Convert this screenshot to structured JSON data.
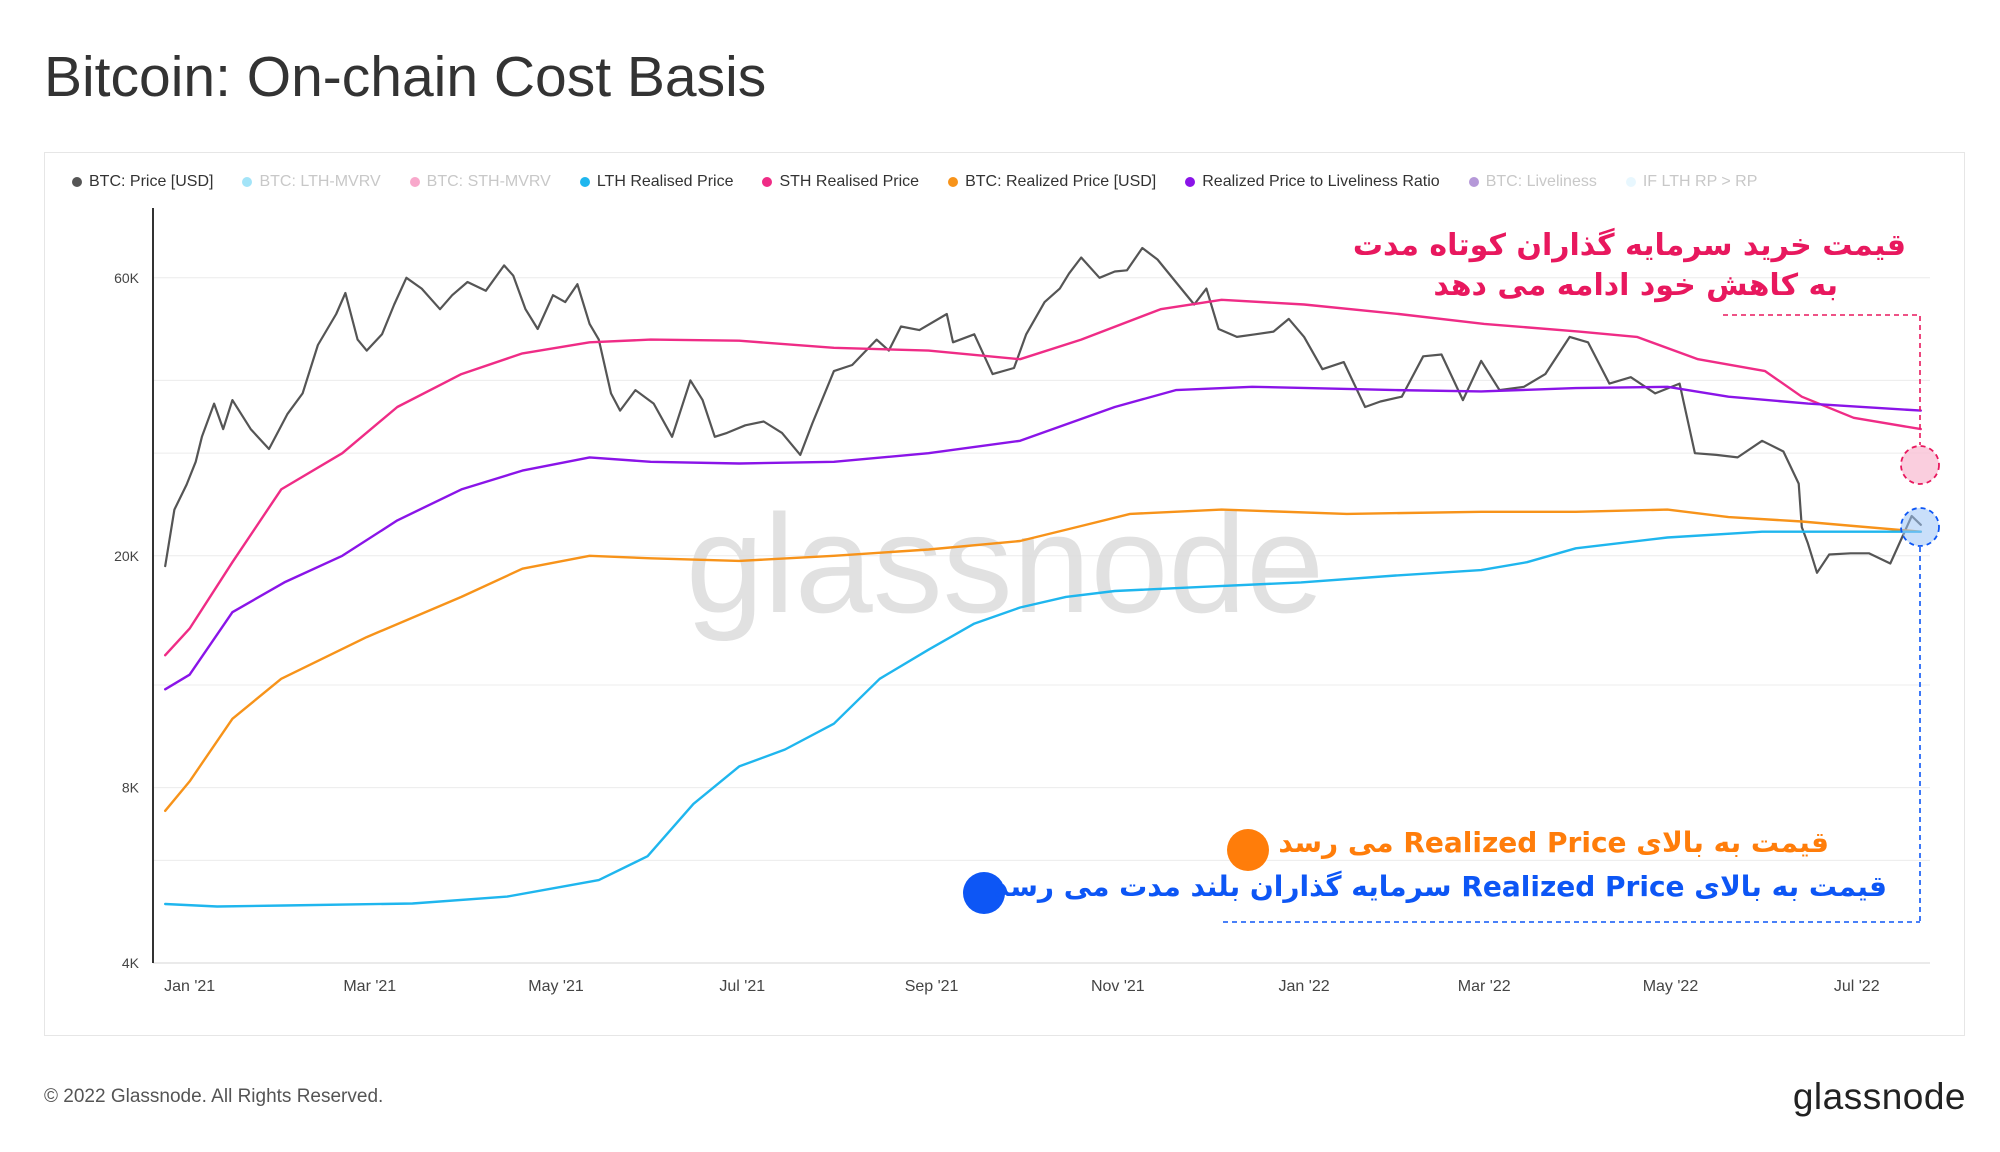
{
  "title": "Bitcoin: On-chain Cost Basis",
  "footer": {
    "copyright": "© 2022 Glassnode. All Rights Reserved.",
    "logo": "glassnode"
  },
  "watermark": "glassnode",
  "legend": [
    {
      "label": "BTC: Price [USD]",
      "color": "#555555",
      "active": true
    },
    {
      "label": "BTC: LTH-MVRV",
      "color": "#34c3f0",
      "active": false
    },
    {
      "label": "BTC: STH-MVRV",
      "color": "#ef3f8c",
      "active": false
    },
    {
      "label": "LTH Realised Price",
      "color": "#1fb6ee",
      "active": true
    },
    {
      "label": "STH Realised Price",
      "color": "#ef2c86",
      "active": true
    },
    {
      "label": "BTC: Realized Price [USD]",
      "color": "#f7931a",
      "active": true
    },
    {
      "label": "Realized Price to Liveliness Ratio",
      "color": "#8a14e8",
      "active": true
    },
    {
      "label": "BTC: Liveliness",
      "color": "#5a1aa8",
      "active": false
    },
    {
      "label": "IF LTH RP > RP",
      "color": "#cdeefc",
      "active": false
    }
  ],
  "annotations": {
    "sth_line1": "قیمت خرید سرمایه گذاران کوتاه مدت",
    "sth_line2": "به کاهش خود ادامه می دهد",
    "realized_text": "قیمت به بالای Realized Price می رسد",
    "lth_text": "قیمت به بالای Realized Price سرمایه گذاران بلند مدت می رسد",
    "colors": {
      "pink": "#e8185e",
      "orange": "#ff7d0a",
      "blue": "#0d56f5"
    }
  },
  "chart_data": {
    "type": "line",
    "yscale": "log",
    "ylim": [
      4000,
      80000
    ],
    "yticks": [
      {
        "value": 4000,
        "label": "4K"
      },
      {
        "value": 8000,
        "label": "8K"
      },
      {
        "value": 20000,
        "label": "20K"
      },
      {
        "value": 60000,
        "label": "60K"
      }
    ],
    "ygrid": [
      4000,
      6000,
      8000,
      12000,
      20000,
      30000,
      40000,
      60000
    ],
    "xlim": [
      "2020-12-20",
      "2022-07-25"
    ],
    "xticks": [
      {
        "date": "2021-01-01",
        "label": "Jan '21"
      },
      {
        "date": "2021-03-01",
        "label": "Mar '21"
      },
      {
        "date": "2021-05-01",
        "label": "May '21"
      },
      {
        "date": "2021-07-01",
        "label": "Jul '21"
      },
      {
        "date": "2021-09-01",
        "label": "Sep '21"
      },
      {
        "date": "2021-11-01",
        "label": "Nov '21"
      },
      {
        "date": "2022-01-01",
        "label": "Jan '22"
      },
      {
        "date": "2022-03-01",
        "label": "Mar '22"
      },
      {
        "date": "2022-05-01",
        "label": "May '22"
      },
      {
        "date": "2022-07-01",
        "label": "Jul '22"
      }
    ],
    "series": [
      {
        "name": "BTC: Price [USD]",
        "color": "#555555",
        "width": 2.2,
        "points": [
          [
            "2020-12-24",
            19200
          ],
          [
            "2020-12-27",
            24000
          ],
          [
            "2020-12-31",
            26500
          ],
          [
            "2021-01-03",
            29000
          ],
          [
            "2021-01-05",
            32000
          ],
          [
            "2021-01-09",
            36500
          ],
          [
            "2021-01-12",
            33000
          ],
          [
            "2021-01-15",
            37000
          ],
          [
            "2021-01-21",
            33000
          ],
          [
            "2021-01-27",
            30500
          ],
          [
            "2021-02-02",
            35000
          ],
          [
            "2021-02-07",
            38000
          ],
          [
            "2021-02-12",
            46000
          ],
          [
            "2021-02-18",
            52000
          ],
          [
            "2021-02-21",
            56500
          ],
          [
            "2021-02-25",
            47000
          ],
          [
            "2021-02-28",
            45000
          ],
          [
            "2021-03-05",
            48000
          ],
          [
            "2021-03-09",
            54000
          ],
          [
            "2021-03-13",
            60000
          ],
          [
            "2021-03-18",
            57500
          ],
          [
            "2021-03-24",
            53000
          ],
          [
            "2021-03-28",
            56000
          ],
          [
            "2021-04-02",
            59000
          ],
          [
            "2021-04-08",
            57000
          ],
          [
            "2021-04-14",
            63000
          ],
          [
            "2021-04-17",
            60500
          ],
          [
            "2021-04-21",
            53000
          ],
          [
            "2021-04-25",
            49000
          ],
          [
            "2021-04-30",
            56000
          ],
          [
            "2021-05-04",
            54500
          ],
          [
            "2021-05-08",
            58500
          ],
          [
            "2021-05-12",
            50000
          ],
          [
            "2021-05-15",
            47000
          ],
          [
            "2021-05-19",
            38000
          ],
          [
            "2021-05-22",
            35500
          ],
          [
            "2021-05-27",
            38500
          ],
          [
            "2021-06-02",
            36500
          ],
          [
            "2021-06-08",
            32000
          ],
          [
            "2021-06-14",
            40000
          ],
          [
            "2021-06-18",
            37000
          ],
          [
            "2021-06-22",
            32000
          ],
          [
            "2021-06-26",
            32500
          ],
          [
            "2021-07-02",
            33500
          ],
          [
            "2021-07-08",
            34000
          ],
          [
            "2021-07-14",
            32500
          ],
          [
            "2021-07-20",
            29800
          ],
          [
            "2021-07-24",
            33800
          ],
          [
            "2021-07-31",
            41500
          ],
          [
            "2021-08-06",
            42500
          ],
          [
            "2021-08-14",
            47000
          ],
          [
            "2021-08-18",
            45000
          ],
          [
            "2021-08-22",
            49500
          ],
          [
            "2021-08-28",
            48800
          ],
          [
            "2021-09-06",
            52000
          ],
          [
            "2021-09-08",
            46500
          ],
          [
            "2021-09-15",
            48000
          ],
          [
            "2021-09-21",
            41000
          ],
          [
            "2021-09-28",
            42000
          ],
          [
            "2021-10-02",
            48000
          ],
          [
            "2021-10-08",
            54500
          ],
          [
            "2021-10-13",
            57500
          ],
          [
            "2021-10-16",
            61000
          ],
          [
            "2021-10-20",
            65000
          ],
          [
            "2021-10-26",
            60000
          ],
          [
            "2021-10-31",
            61500
          ],
          [
            "2021-11-04",
            61800
          ],
          [
            "2021-11-09",
            67500
          ],
          [
            "2021-11-14",
            64500
          ],
          [
            "2021-11-20",
            59000
          ],
          [
            "2021-11-26",
            54000
          ],
          [
            "2021-11-30",
            57500
          ],
          [
            "2021-12-04",
            49000
          ],
          [
            "2021-12-10",
            47500
          ],
          [
            "2021-12-16",
            48000
          ],
          [
            "2021-12-22",
            48500
          ],
          [
            "2021-12-27",
            51000
          ],
          [
            "2022-01-01",
            47500
          ],
          [
            "2022-01-07",
            41800
          ],
          [
            "2022-01-14",
            43000
          ],
          [
            "2022-01-21",
            36000
          ],
          [
            "2022-01-26",
            36800
          ],
          [
            "2022-02-02",
            37500
          ],
          [
            "2022-02-09",
            44000
          ],
          [
            "2022-02-15",
            44300
          ],
          [
            "2022-02-22",
            37000
          ],
          [
            "2022-02-28",
            43200
          ],
          [
            "2022-03-06",
            38500
          ],
          [
            "2022-03-14",
            39000
          ],
          [
            "2022-03-21",
            41000
          ],
          [
            "2022-03-29",
            47500
          ],
          [
            "2022-04-04",
            46500
          ],
          [
            "2022-04-11",
            39500
          ],
          [
            "2022-04-18",
            40500
          ],
          [
            "2022-04-26",
            38000
          ],
          [
            "2022-05-04",
            39500
          ],
          [
            "2022-05-09",
            30000
          ],
          [
            "2022-05-16",
            29800
          ],
          [
            "2022-05-23",
            29500
          ],
          [
            "2022-05-31",
            31500
          ],
          [
            "2022-06-07",
            30200
          ],
          [
            "2022-06-12",
            26600
          ],
          [
            "2022-06-13",
            22400
          ],
          [
            "2022-06-15",
            21000
          ],
          [
            "2022-06-18",
            18700
          ],
          [
            "2022-06-22",
            20100
          ],
          [
            "2022-06-29",
            20200
          ],
          [
            "2022-07-05",
            20200
          ],
          [
            "2022-07-12",
            19400
          ],
          [
            "2022-07-19",
            23400
          ],
          [
            "2022-07-22",
            22600
          ]
        ]
      },
      {
        "name": "STH Realised Price",
        "color": "#ef2c86",
        "width": 2.4,
        "points": [
          [
            "2020-12-24",
            13500
          ],
          [
            "2021-01-01",
            15000
          ],
          [
            "2021-01-15",
            19500
          ],
          [
            "2021-01-31",
            26000
          ],
          [
            "2021-02-20",
            30000
          ],
          [
            "2021-03-10",
            36000
          ],
          [
            "2021-03-31",
            41000
          ],
          [
            "2021-04-20",
            44500
          ],
          [
            "2021-05-12",
            46500
          ],
          [
            "2021-06-01",
            47000
          ],
          [
            "2021-06-30",
            46800
          ],
          [
            "2021-07-31",
            45500
          ],
          [
            "2021-08-31",
            45000
          ],
          [
            "2021-09-30",
            43500
          ],
          [
            "2021-10-20",
            47000
          ],
          [
            "2021-11-15",
            53000
          ],
          [
            "2021-12-05",
            55000
          ],
          [
            "2022-01-01",
            54000
          ],
          [
            "2022-02-01",
            52000
          ],
          [
            "2022-03-01",
            50000
          ],
          [
            "2022-04-01",
            48500
          ],
          [
            "2022-04-20",
            47500
          ],
          [
            "2022-05-10",
            43500
          ],
          [
            "2022-06-01",
            41500
          ],
          [
            "2022-06-13",
            37500
          ],
          [
            "2022-06-30",
            34500
          ],
          [
            "2022-07-22",
            33000
          ]
        ]
      },
      {
        "name": "Realized Price to Liveliness Ratio",
        "color": "#8a14e8",
        "width": 2.4,
        "points": [
          [
            "2020-12-24",
            11800
          ],
          [
            "2021-01-01",
            12500
          ],
          [
            "2021-01-15",
            16000
          ],
          [
            "2021-02-01",
            18000
          ],
          [
            "2021-02-20",
            20000
          ],
          [
            "2021-03-10",
            23000
          ],
          [
            "2021-03-31",
            26000
          ],
          [
            "2021-04-20",
            28000
          ],
          [
            "2021-05-12",
            29500
          ],
          [
            "2021-06-01",
            29000
          ],
          [
            "2021-06-30",
            28800
          ],
          [
            "2021-07-31",
            29000
          ],
          [
            "2021-08-31",
            30000
          ],
          [
            "2021-09-30",
            31500
          ],
          [
            "2021-10-31",
            36000
          ],
          [
            "2021-11-20",
            38500
          ],
          [
            "2021-12-15",
            39000
          ],
          [
            "2022-01-31",
            38500
          ],
          [
            "2022-02-28",
            38300
          ],
          [
            "2022-03-31",
            38800
          ],
          [
            "2022-04-30",
            39000
          ],
          [
            "2022-05-20",
            37500
          ],
          [
            "2022-06-15",
            36500
          ],
          [
            "2022-07-22",
            35500
          ]
        ]
      },
      {
        "name": "BTC: Realized Price [USD]",
        "color": "#f7931a",
        "width": 2.4,
        "points": [
          [
            "2020-12-24",
            7300
          ],
          [
            "2021-01-01",
            8200
          ],
          [
            "2021-01-15",
            10500
          ],
          [
            "2021-01-31",
            12300
          ],
          [
            "2021-02-28",
            14500
          ],
          [
            "2021-03-31",
            17000
          ],
          [
            "2021-04-20",
            19000
          ],
          [
            "2021-05-12",
            20000
          ],
          [
            "2021-06-01",
            19800
          ],
          [
            "2021-06-30",
            19600
          ],
          [
            "2021-07-31",
            20000
          ],
          [
            "2021-08-31",
            20500
          ],
          [
            "2021-09-30",
            21200
          ],
          [
            "2021-10-20",
            22500
          ],
          [
            "2021-11-05",
            23600
          ],
          [
            "2021-12-05",
            24000
          ],
          [
            "2022-01-15",
            23600
          ],
          [
            "2022-02-28",
            23800
          ],
          [
            "2022-03-31",
            23800
          ],
          [
            "2022-04-30",
            24000
          ],
          [
            "2022-05-20",
            23300
          ],
          [
            "2022-06-13",
            22900
          ],
          [
            "2022-06-30",
            22500
          ],
          [
            "2022-07-22",
            22000
          ]
        ]
      },
      {
        "name": "LTH Realised Price",
        "color": "#1fb6ee",
        "width": 2.4,
        "points": [
          [
            "2020-12-24",
            5050
          ],
          [
            "2021-01-10",
            5000
          ],
          [
            "2021-02-01",
            5020
          ],
          [
            "2021-03-15",
            5060
          ],
          [
            "2021-04-15",
            5200
          ],
          [
            "2021-05-15",
            5550
          ],
          [
            "2021-05-31",
            6100
          ],
          [
            "2021-06-15",
            7500
          ],
          [
            "2021-06-30",
            8700
          ],
          [
            "2021-07-15",
            9300
          ],
          [
            "2021-07-31",
            10300
          ],
          [
            "2021-08-15",
            12300
          ],
          [
            "2021-08-31",
            13800
          ],
          [
            "2021-09-15",
            15300
          ],
          [
            "2021-09-30",
            16300
          ],
          [
            "2021-10-15",
            17000
          ],
          [
            "2021-10-31",
            17400
          ],
          [
            "2021-11-30",
            17700
          ],
          [
            "2021-12-31",
            18000
          ],
          [
            "2022-01-31",
            18500
          ],
          [
            "2022-02-28",
            18900
          ],
          [
            "2022-03-15",
            19500
          ],
          [
            "2022-03-31",
            20600
          ],
          [
            "2022-04-30",
            21500
          ],
          [
            "2022-05-31",
            22000
          ],
          [
            "2022-06-30",
            22000
          ],
          [
            "2022-07-22",
            22000
          ]
        ]
      }
    ]
  }
}
